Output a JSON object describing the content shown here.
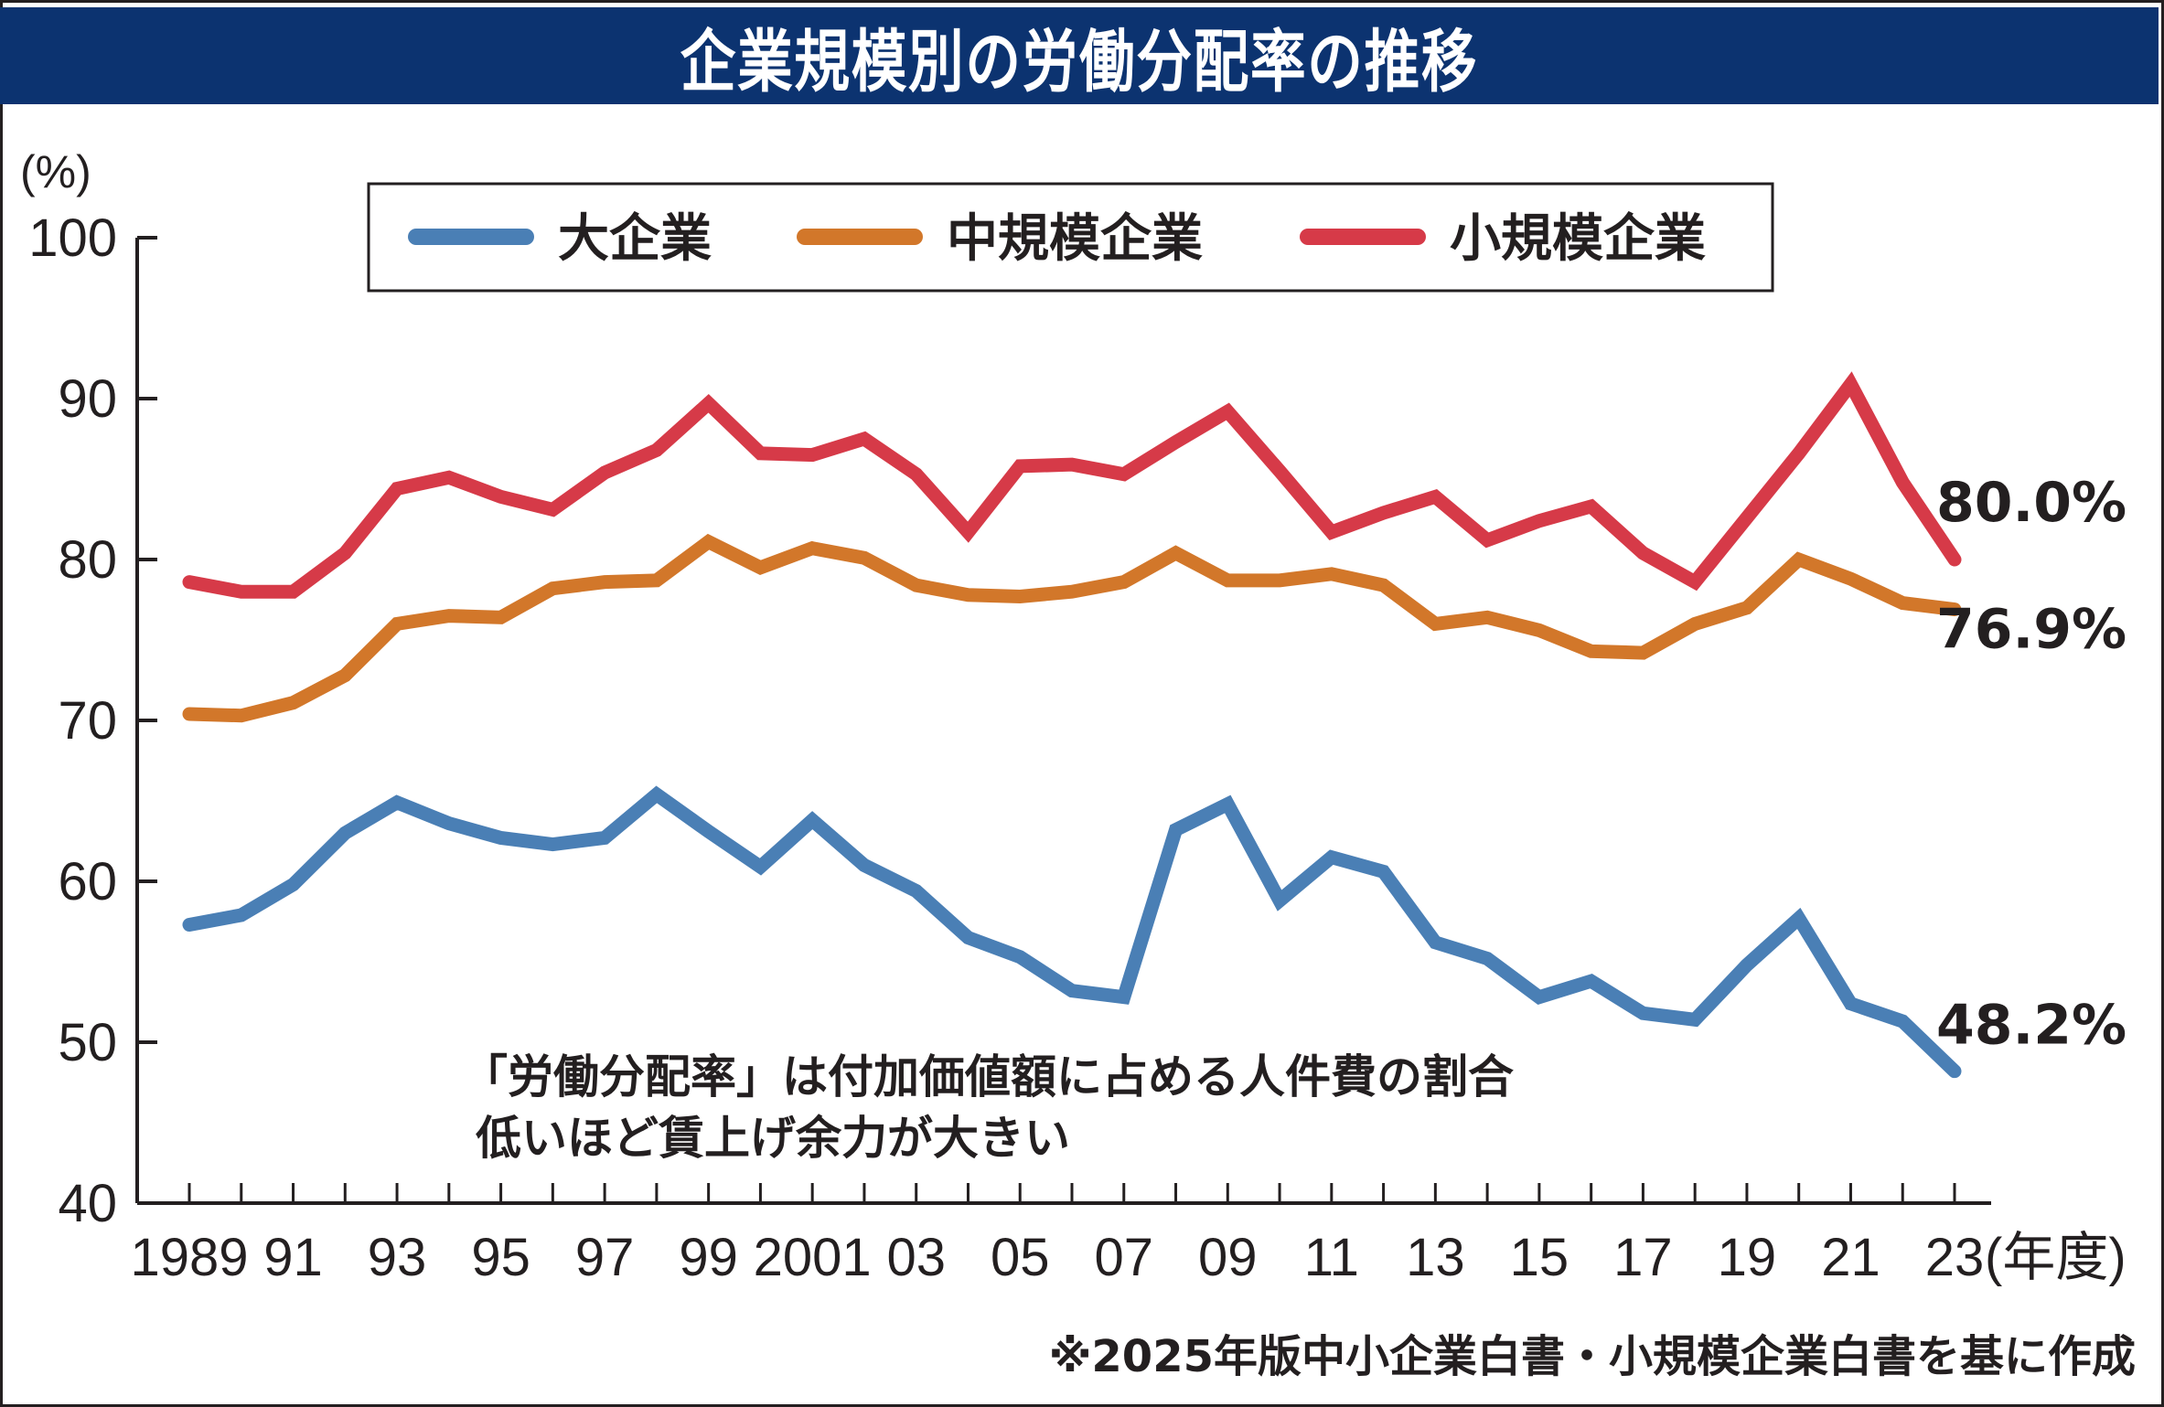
{
  "title": "企業規模別の労働分配率の推移",
  "chart_data": {
    "type": "line",
    "title": "企業規模別の労働分配率の推移",
    "ylabel": "(%)",
    "xlabel": "(年度)",
    "ylim": [
      40,
      100
    ],
    "yticks": [
      40,
      50,
      60,
      70,
      80,
      90,
      100
    ],
    "grid": false,
    "legend_position": "top-center",
    "x": [
      1989,
      1990,
      1991,
      1992,
      1993,
      1994,
      1995,
      1996,
      1997,
      1998,
      1999,
      2000,
      2001,
      2002,
      2003,
      2004,
      2005,
      2006,
      2007,
      2008,
      2009,
      2010,
      2011,
      2012,
      2013,
      2014,
      2015,
      2016,
      2017,
      2018,
      2019,
      2020,
      2021,
      2022,
      2023
    ],
    "xtick_labels": [
      {
        "year": 1989,
        "label": "1989"
      },
      {
        "year": 1991,
        "label": "91"
      },
      {
        "year": 1993,
        "label": "93"
      },
      {
        "year": 1995,
        "label": "95"
      },
      {
        "year": 1997,
        "label": "97"
      },
      {
        "year": 1999,
        "label": "99"
      },
      {
        "year": 2001,
        "label": "2001"
      },
      {
        "year": 2003,
        "label": "03"
      },
      {
        "year": 2005,
        "label": "05"
      },
      {
        "year": 2007,
        "label": "07"
      },
      {
        "year": 2009,
        "label": "09"
      },
      {
        "year": 2011,
        "label": "11"
      },
      {
        "year": 2013,
        "label": "13"
      },
      {
        "year": 2015,
        "label": "15"
      },
      {
        "year": 2017,
        "label": "17"
      },
      {
        "year": 2019,
        "label": "19"
      },
      {
        "year": 2021,
        "label": "21"
      },
      {
        "year": 2023,
        "label": "23"
      }
    ],
    "series": [
      {
        "name": "大企業",
        "color": "#4a7fb5",
        "end_label": "48.2%",
        "values": [
          57.3,
          57.9,
          59.8,
          63.0,
          64.9,
          63.6,
          62.7,
          62.3,
          62.7,
          65.4,
          63.1,
          60.9,
          63.8,
          61.0,
          59.4,
          56.5,
          55.3,
          53.2,
          52.8,
          63.2,
          64.8,
          58.8,
          61.5,
          60.6,
          56.2,
          55.2,
          52.8,
          53.8,
          51.8,
          51.4,
          54.8,
          57.7,
          52.4,
          51.3,
          48.2
        ]
      },
      {
        "name": "中規模企業",
        "color": "#d2772a",
        "end_label": "76.9%",
        "values": [
          70.4,
          70.3,
          71.1,
          72.8,
          76.0,
          76.5,
          76.4,
          78.2,
          78.6,
          78.7,
          81.1,
          79.5,
          80.7,
          80.1,
          78.4,
          77.8,
          77.7,
          78.0,
          78.6,
          80.4,
          78.7,
          78.7,
          79.1,
          78.4,
          76.0,
          76.4,
          75.6,
          74.3,
          74.2,
          76.0,
          77.0,
          80.0,
          78.8,
          77.3,
          76.9
        ]
      },
      {
        "name": "小規模企業",
        "color": "#d63a48",
        "end_label": "80.0%",
        "values": [
          78.6,
          78.0,
          78.0,
          80.4,
          84.4,
          85.1,
          83.9,
          83.1,
          85.4,
          86.8,
          89.7,
          86.6,
          86.5,
          87.5,
          85.3,
          81.7,
          85.8,
          85.9,
          85.3,
          87.3,
          89.2,
          85.5,
          81.7,
          82.9,
          83.9,
          81.2,
          82.4,
          83.3,
          80.4,
          78.6,
          82.6,
          86.6,
          90.9,
          84.8,
          80.0
        ]
      }
    ],
    "annotations": [
      "「労働分配率」は付加価値額に占める人件費の割合",
      "低いほど賃上げ余力が大きい"
    ],
    "source": "※2025年版中小企業白書・小規模企業白書を基に作成"
  },
  "colors": {
    "title_bg": "#0c3370",
    "title_text": "#ffffff",
    "axis": "#231f20"
  }
}
